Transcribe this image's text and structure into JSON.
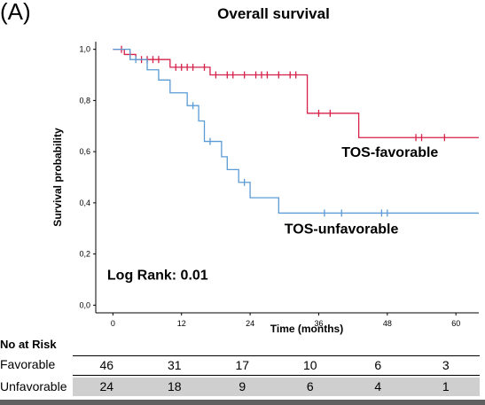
{
  "panel_label": "(A)",
  "chart_data": {
    "type": "line",
    "title": "Overall survival",
    "xlabel": "Time (months)",
    "ylabel": "Survival probability",
    "xlim": [
      -3,
      64
    ],
    "ylim": [
      -0.03,
      1.03
    ],
    "x_ticks": [
      0,
      12,
      24,
      36,
      48,
      60
    ],
    "x_tick_labels": [
      "0",
      "12",
      "24",
      "36",
      "48",
      "60"
    ],
    "y_ticks": [
      0,
      0.2,
      0.4,
      0.6,
      0.8,
      1.0
    ],
    "y_tick_labels": [
      "0,0",
      "0,2",
      "0,4",
      "0,6",
      "0,8",
      "1,0"
    ],
    "grid": false,
    "series": [
      {
        "name": "TOS-favorable",
        "color": "#d6204a",
        "steps": [
          [
            0,
            1.0
          ],
          [
            2,
            0.98
          ],
          [
            4,
            0.96
          ],
          [
            10,
            0.93
          ],
          [
            17,
            0.9
          ],
          [
            34,
            0.75
          ],
          [
            43,
            0.655
          ],
          [
            64,
            0.655
          ]
        ],
        "censor_times": [
          1.5,
          3,
          5,
          6,
          7,
          8,
          11,
          12,
          13,
          14,
          16,
          18,
          20,
          21,
          23,
          25,
          26,
          27,
          29,
          31,
          32,
          36,
          38,
          53,
          54,
          58
        ]
      },
      {
        "name": "TOS-unfavorable",
        "color": "#5b9bd5",
        "steps": [
          [
            0,
            1.0
          ],
          [
            3,
            0.96
          ],
          [
            6,
            0.92
          ],
          [
            8,
            0.88
          ],
          [
            10,
            0.83
          ],
          [
            13,
            0.78
          ],
          [
            15,
            0.72
          ],
          [
            16,
            0.64
          ],
          [
            19,
            0.58
          ],
          [
            20,
            0.53
          ],
          [
            22,
            0.48
          ],
          [
            24,
            0.42
          ],
          [
            29,
            0.36
          ],
          [
            64,
            0.36
          ]
        ],
        "censor_times": [
          4,
          14,
          17,
          23,
          37,
          40,
          47,
          48
        ]
      }
    ],
    "annotations": [
      {
        "text": "TOS-favorable",
        "series": 0
      },
      {
        "text": "TOS-unfavorable",
        "series": 1
      },
      {
        "text": "Log Rank: 0.01"
      }
    ]
  },
  "risk_table": {
    "title": "No at Risk",
    "rows": [
      {
        "label": "Favorable",
        "values": [
          "46",
          "31",
          "17",
          "10",
          "6",
          "3"
        ]
      },
      {
        "label": "Unfavorable",
        "values": [
          "24",
          "18",
          "9",
          "6",
          "4",
          "1"
        ]
      }
    ]
  }
}
